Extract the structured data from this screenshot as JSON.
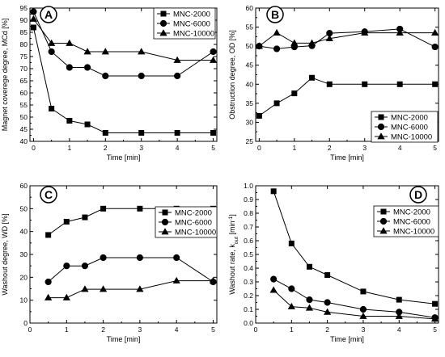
{
  "chart_data": [
    {
      "type": "line",
      "panel_label": "A",
      "xlabel": "Time [min]",
      "ylabel": "Magnet coverege degree, MCd [%]",
      "xlim": [
        -0.1,
        5.1
      ],
      "ylim": [
        40,
        95
      ],
      "xticks": [
        "0",
        "1",
        "2",
        "3",
        "4",
        "5"
      ],
      "yticks": [
        "40",
        "45",
        "50",
        "55",
        "60",
        "65",
        "70",
        "75",
        "80",
        "85",
        "90",
        "95"
      ],
      "legend_position": "top-right",
      "series": [
        {
          "name": "MNC-2000",
          "marker": "square",
          "x": [
            0,
            0.5,
            1,
            1.5,
            2,
            3,
            4,
            5
          ],
          "y": [
            87,
            53.5,
            48.5,
            47,
            43.5,
            43.5,
            43.5,
            43.5
          ]
        },
        {
          "name": "MNC-6000",
          "marker": "circle",
          "x": [
            0,
            0.5,
            1,
            1.5,
            2,
            3,
            4,
            5
          ],
          "y": [
            93.5,
            77,
            70.5,
            70.5,
            67,
            67,
            67,
            77
          ]
        },
        {
          "name": "MNC-10000",
          "marker": "triangle",
          "x": [
            0,
            0.5,
            1,
            1.5,
            2,
            3,
            4,
            5
          ],
          "y": [
            90.5,
            80.5,
            80.5,
            77,
            77,
            77,
            73.5,
            73.5
          ]
        }
      ]
    },
    {
      "type": "line",
      "panel_label": "B",
      "xlabel": "Time [min]",
      "ylabel": "Obstruction degree, OD [%]",
      "xlim": [
        -0.1,
        5.1
      ],
      "ylim": [
        25,
        60
      ],
      "xticks": [
        "0",
        "1",
        "2",
        "3",
        "4",
        "5"
      ],
      "yticks": [
        "25",
        "30",
        "35",
        "40",
        "45",
        "50",
        "55",
        "60"
      ],
      "legend_position": "bottom-right",
      "series": [
        {
          "name": "MNC-2000",
          "marker": "square",
          "x": [
            0,
            0.5,
            1,
            1.5,
            2,
            3,
            4,
            5
          ],
          "y": [
            31.7,
            35,
            37.6,
            41.7,
            40,
            40,
            40,
            40
          ]
        },
        {
          "name": "MNC-6000",
          "marker": "circle",
          "x": [
            0,
            0.5,
            1,
            1.5,
            2,
            3,
            4,
            5
          ],
          "y": [
            50,
            49.3,
            49.8,
            50.1,
            53.4,
            53.8,
            54.5,
            49.8
          ]
        },
        {
          "name": "MNC-10000",
          "marker": "triangle",
          "x": [
            0,
            0.5,
            1,
            1.5,
            2,
            3,
            4,
            5
          ],
          "y": [
            50,
            53.5,
            50.8,
            50.8,
            52,
            53.5,
            53.5,
            53.5
          ]
        }
      ]
    },
    {
      "type": "line",
      "panel_label": "C",
      "xlabel": "Time [min]",
      "ylabel": "Washout degree, WD [%]",
      "xlim": [
        0,
        5.1
      ],
      "ylim": [
        0,
        60
      ],
      "xticks": [
        "0",
        "1",
        "2",
        "3",
        "4",
        "5"
      ],
      "yticks": [
        "0",
        "10",
        "20",
        "30",
        "40",
        "50",
        "60"
      ],
      "legend_position": "right",
      "series": [
        {
          "name": "MNC-2000",
          "marker": "square",
          "x": [
            0.5,
            1,
            1.5,
            2,
            3,
            4,
            5
          ],
          "y": [
            38.5,
            44.3,
            46.2,
            50,
            50,
            50,
            50
          ]
        },
        {
          "name": "MNC-6000",
          "marker": "circle",
          "x": [
            0.5,
            1,
            1.5,
            2,
            3,
            4,
            5
          ],
          "y": [
            18,
            25,
            25,
            28.6,
            28.6,
            28.6,
            18
          ]
        },
        {
          "name": "MNC-10000",
          "marker": "triangle",
          "x": [
            0.5,
            1,
            1.5,
            2,
            3,
            4,
            5
          ],
          "y": [
            11.1,
            11.1,
            14.8,
            14.8,
            14.8,
            18.5,
            18.5
          ]
        }
      ]
    },
    {
      "type": "line",
      "panel_label": "D",
      "xlabel": "Time [min]",
      "ylabel": "Washout rate, k",
      "ylabel_sub": "out",
      "ylabel_unit_pre": " [min",
      "ylabel_sup": "-1",
      "ylabel_unit_post": "]",
      "xlim": [
        0,
        5.1
      ],
      "ylim": [
        0,
        1.0
      ],
      "xticks": [
        "0",
        "1",
        "2",
        "3",
        "4",
        "5"
      ],
      "yticks": [
        "0.0",
        "0.1",
        "0.2",
        "0.3",
        "0.4",
        "0.5",
        "0.6",
        "0.7",
        "0.8",
        "0.9",
        "1.0"
      ],
      "legend_position": "top-right",
      "series": [
        {
          "name": "MNC-2000",
          "marker": "square",
          "x": [
            0.5,
            1,
            1.5,
            2,
            3,
            4,
            5
          ],
          "y": [
            0.96,
            0.58,
            0.41,
            0.35,
            0.23,
            0.17,
            0.14
          ]
        },
        {
          "name": "MNC-6000",
          "marker": "circle",
          "x": [
            0.5,
            1,
            1.5,
            2,
            3,
            4,
            5
          ],
          "y": [
            0.32,
            0.25,
            0.17,
            0.15,
            0.1,
            0.08,
            0.04
          ]
        },
        {
          "name": "MNC-10000",
          "marker": "triangle",
          "x": [
            0.5,
            1,
            1.5,
            2,
            3,
            4,
            5
          ],
          "y": [
            0.24,
            0.12,
            0.11,
            0.08,
            0.05,
            0.05,
            0.03
          ]
        }
      ]
    }
  ]
}
